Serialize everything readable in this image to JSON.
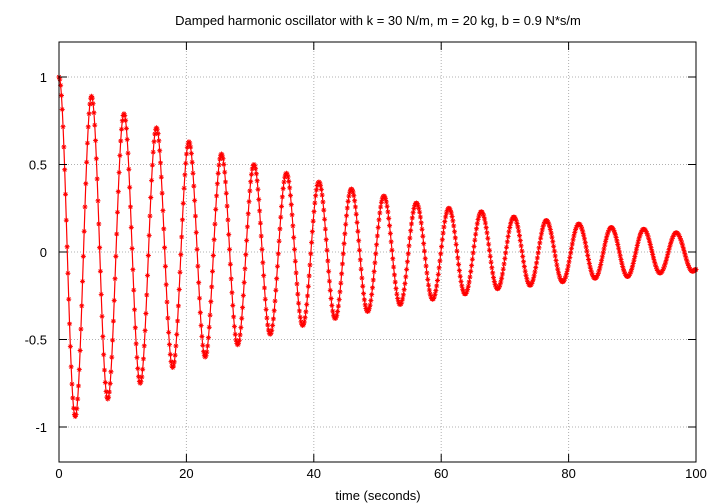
{
  "chart_data": {
    "type": "line",
    "title": "Damped harmonic oscillator with k = 30 N/m, m = 20 kg, b = 0.9 N*s/m",
    "xlabel": "time (seconds)",
    "ylabel": "",
    "xlim": [
      0,
      100
    ],
    "ylim": [
      -1.2,
      1.2
    ],
    "x_ticks": [
      "0",
      "20",
      "40",
      "60",
      "80",
      "100"
    ],
    "y_ticks": [
      "1",
      "0.5",
      "0",
      "-0.5",
      "-1"
    ],
    "grid": true,
    "legend": "none",
    "series": [
      {
        "color": "#ff0000",
        "marker": "star",
        "x": [
          0,
          2.55,
          5.1,
          7.65,
          10.2,
          12.75,
          15.3,
          17.85,
          20.4,
          22.95,
          25.5,
          28.05,
          30.6,
          33.15,
          35.7,
          38.25,
          40.8,
          43.35,
          45.9,
          48.45,
          51.0,
          53.55,
          56.1,
          58.65,
          61.2,
          63.75,
          66.3,
          68.85,
          71.4,
          73.95,
          76.5,
          79.05,
          81.6,
          84.15,
          86.7,
          89.25,
          91.8,
          94.35,
          96.9,
          99.45,
          100
        ],
        "y": [
          1.0,
          -0.94,
          0.89,
          -0.84,
          0.79,
          -0.75,
          0.71,
          -0.66,
          0.63,
          -0.6,
          0.56,
          -0.53,
          0.5,
          -0.47,
          0.45,
          -0.42,
          0.4,
          -0.38,
          0.36,
          -0.34,
          0.32,
          -0.3,
          0.28,
          -0.27,
          0.25,
          -0.24,
          0.23,
          -0.21,
          0.2,
          -0.19,
          0.18,
          -0.17,
          0.16,
          -0.15,
          0.14,
          -0.14,
          0.13,
          -0.12,
          0.11,
          -0.11,
          -0.1
        ]
      }
    ]
  }
}
